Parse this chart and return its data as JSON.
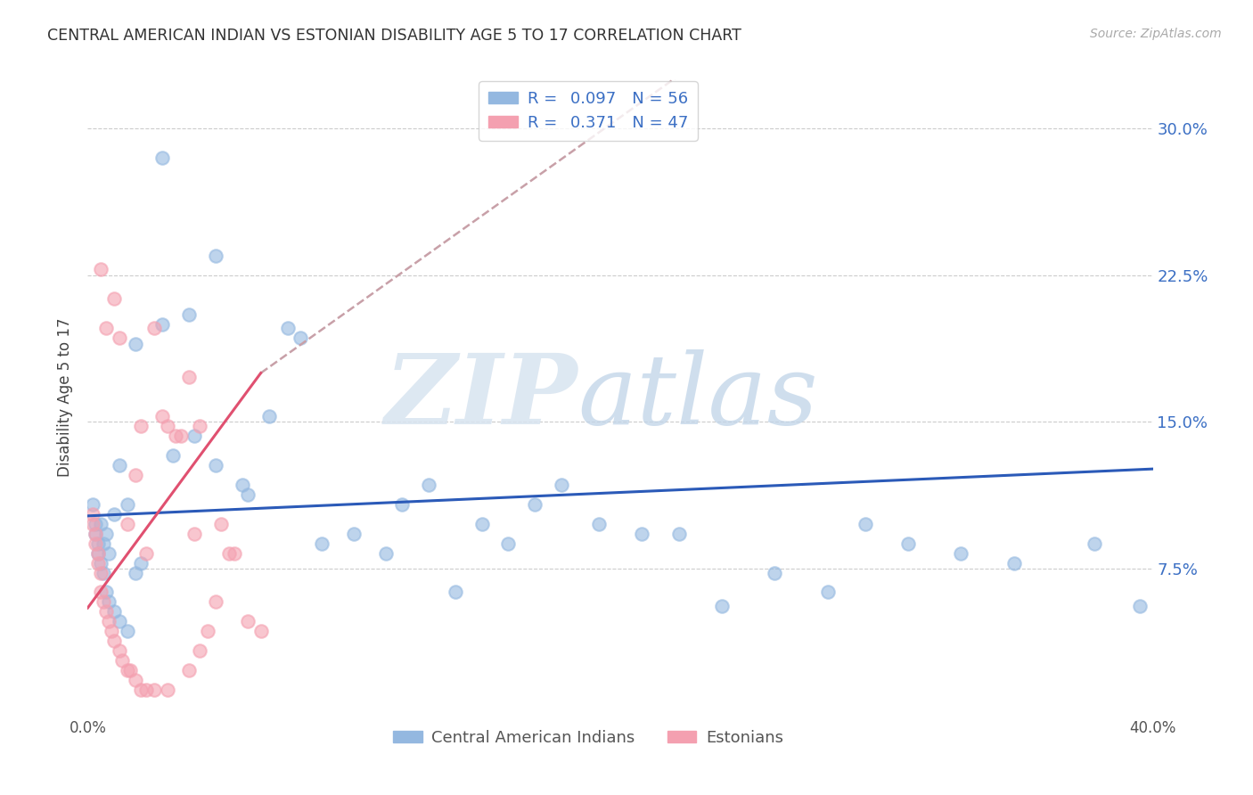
{
  "title": "CENTRAL AMERICAN INDIAN VS ESTONIAN DISABILITY AGE 5 TO 17 CORRELATION CHART",
  "source": "Source: ZipAtlas.com",
  "ylabel": "Disability Age 5 to 17",
  "xlim": [
    0.0,
    0.4
  ],
  "ylim": [
    0.0,
    0.325
  ],
  "yticks": [
    0.075,
    0.15,
    0.225,
    0.3
  ],
  "ytick_labels": [
    "7.5%",
    "15.0%",
    "22.5%",
    "30.0%"
  ],
  "xticks": [
    0.0,
    0.1,
    0.2,
    0.3,
    0.4
  ],
  "xtick_labels": [
    "0.0%",
    "",
    "",
    "",
    "40.0%"
  ],
  "blue_R": 0.097,
  "blue_N": 56,
  "pink_R": 0.371,
  "pink_N": 47,
  "blue_color": "#94B8E0",
  "pink_color": "#F4A0B0",
  "blue_color_dark": "#3B6FC4",
  "pink_color_dark": "#E05878",
  "trend_blue": "#2B5AB8",
  "trend_pink": "#E05070",
  "trend_pink_dash_color": "#C8A0A8",
  "background": "#FFFFFF",
  "blue_scatter_x": [
    0.028,
    0.048,
    0.028,
    0.038,
    0.018,
    0.005,
    0.006,
    0.007,
    0.008,
    0.01,
    0.012,
    0.015,
    0.018,
    0.02,
    0.032,
    0.04,
    0.048,
    0.058,
    0.06,
    0.068,
    0.075,
    0.08,
    0.088,
    0.1,
    0.112,
    0.118,
    0.128,
    0.138,
    0.148,
    0.158,
    0.168,
    0.178,
    0.192,
    0.208,
    0.222,
    0.238,
    0.258,
    0.278,
    0.292,
    0.308,
    0.328,
    0.348,
    0.378,
    0.395,
    0.002,
    0.003,
    0.003,
    0.004,
    0.004,
    0.005,
    0.006,
    0.007,
    0.008,
    0.01,
    0.012,
    0.015
  ],
  "blue_scatter_y": [
    0.285,
    0.235,
    0.2,
    0.205,
    0.19,
    0.098,
    0.088,
    0.093,
    0.083,
    0.103,
    0.128,
    0.108,
    0.073,
    0.078,
    0.133,
    0.143,
    0.128,
    0.118,
    0.113,
    0.153,
    0.198,
    0.193,
    0.088,
    0.093,
    0.083,
    0.108,
    0.118,
    0.063,
    0.098,
    0.088,
    0.108,
    0.118,
    0.098,
    0.093,
    0.093,
    0.056,
    0.073,
    0.063,
    0.098,
    0.088,
    0.083,
    0.078,
    0.088,
    0.056,
    0.108,
    0.098,
    0.093,
    0.088,
    0.083,
    0.078,
    0.073,
    0.063,
    0.058,
    0.053,
    0.048,
    0.043
  ],
  "pink_scatter_x": [
    0.005,
    0.007,
    0.01,
    0.012,
    0.015,
    0.018,
    0.02,
    0.022,
    0.025,
    0.028,
    0.03,
    0.033,
    0.035,
    0.038,
    0.04,
    0.042,
    0.045,
    0.048,
    0.05,
    0.053,
    0.055,
    0.06,
    0.065,
    0.002,
    0.002,
    0.003,
    0.003,
    0.004,
    0.004,
    0.005,
    0.005,
    0.006,
    0.007,
    0.008,
    0.009,
    0.01,
    0.012,
    0.013,
    0.015,
    0.016,
    0.018,
    0.02,
    0.022,
    0.025,
    0.03,
    0.038,
    0.042
  ],
  "pink_scatter_y": [
    0.228,
    0.198,
    0.213,
    0.193,
    0.098,
    0.123,
    0.148,
    0.083,
    0.198,
    0.153,
    0.148,
    0.143,
    0.143,
    0.173,
    0.093,
    0.148,
    0.043,
    0.058,
    0.098,
    0.083,
    0.083,
    0.048,
    0.043,
    0.103,
    0.098,
    0.093,
    0.088,
    0.083,
    0.078,
    0.073,
    0.063,
    0.058,
    0.053,
    0.048,
    0.043,
    0.038,
    0.033,
    0.028,
    0.023,
    0.023,
    0.018,
    0.013,
    0.013,
    0.013,
    0.013,
    0.023,
    0.033
  ]
}
